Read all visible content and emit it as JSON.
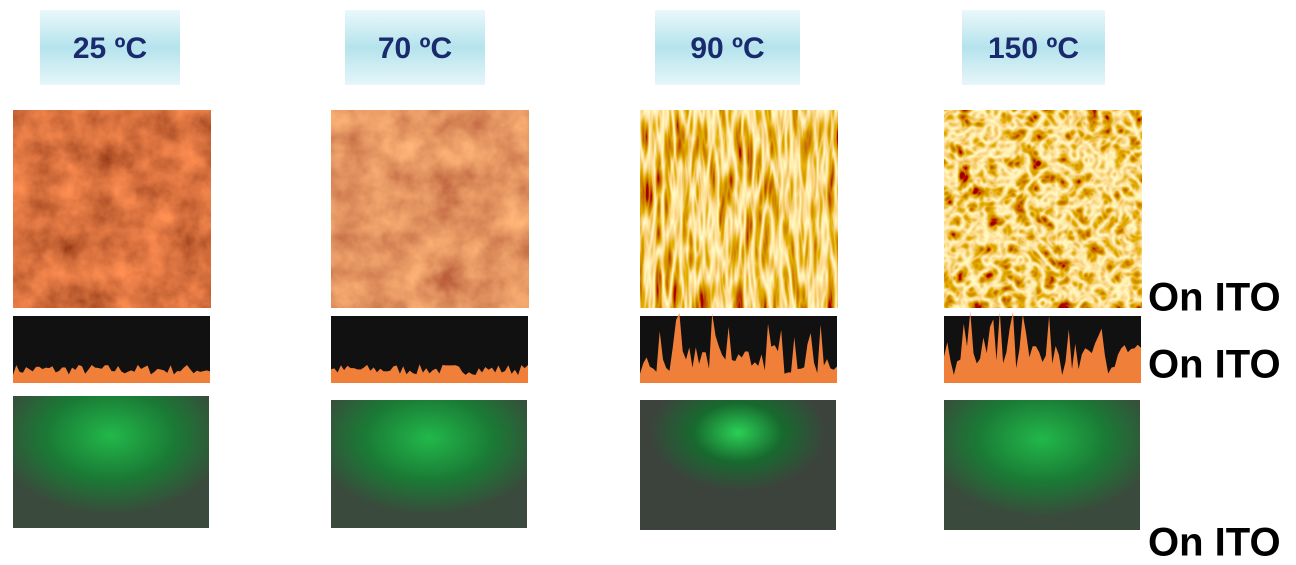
{
  "columns": [
    {
      "label": "25 ºC"
    },
    {
      "label": "70 ºC"
    },
    {
      "label": "90 ºC"
    },
    {
      "label": "150 ºC"
    }
  ],
  "side_labels": [
    "On ITO",
    "On ITO",
    "On ITO"
  ]
}
